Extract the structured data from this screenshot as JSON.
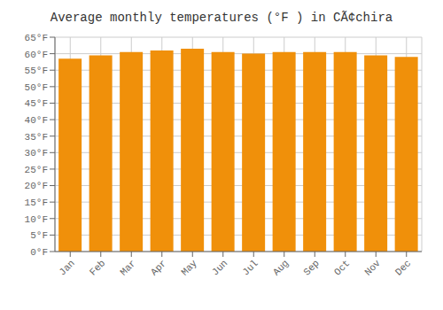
{
  "chart_data": {
    "type": "bar",
    "title": "Average monthly temperatures (°F ) in CÃ¢chira",
    "categories": [
      "Jan",
      "Feb",
      "Mar",
      "Apr",
      "May",
      "Jun",
      "Jul",
      "Aug",
      "Sep",
      "Oct",
      "Nov",
      "Dec"
    ],
    "values": [
      58.5,
      59.5,
      60.5,
      61.0,
      61.5,
      60.5,
      60.0,
      60.5,
      60.5,
      60.5,
      59.5,
      59.0
    ],
    "color": "#F0900A",
    "ylim": [
      0,
      65
    ],
    "yticks": [
      {
        "value": 0,
        "label": "0°F"
      },
      {
        "value": 5,
        "label": "5°F"
      },
      {
        "value": 10,
        "label": "10°F"
      },
      {
        "value": 15,
        "label": "15°F"
      },
      {
        "value": 20,
        "label": "20°F"
      },
      {
        "value": 25,
        "label": "25°F"
      },
      {
        "value": 30,
        "label": "30°F"
      },
      {
        "value": 35,
        "label": "35°F"
      },
      {
        "value": 40,
        "label": "40°F"
      },
      {
        "value": 45,
        "label": "45°F"
      },
      {
        "value": 50,
        "label": "50°F"
      },
      {
        "value": 55,
        "label": "55°F"
      },
      {
        "value": 60,
        "label": "60°F"
      },
      {
        "value": 65,
        "label": "65°F"
      }
    ],
    "grid": true
  }
}
